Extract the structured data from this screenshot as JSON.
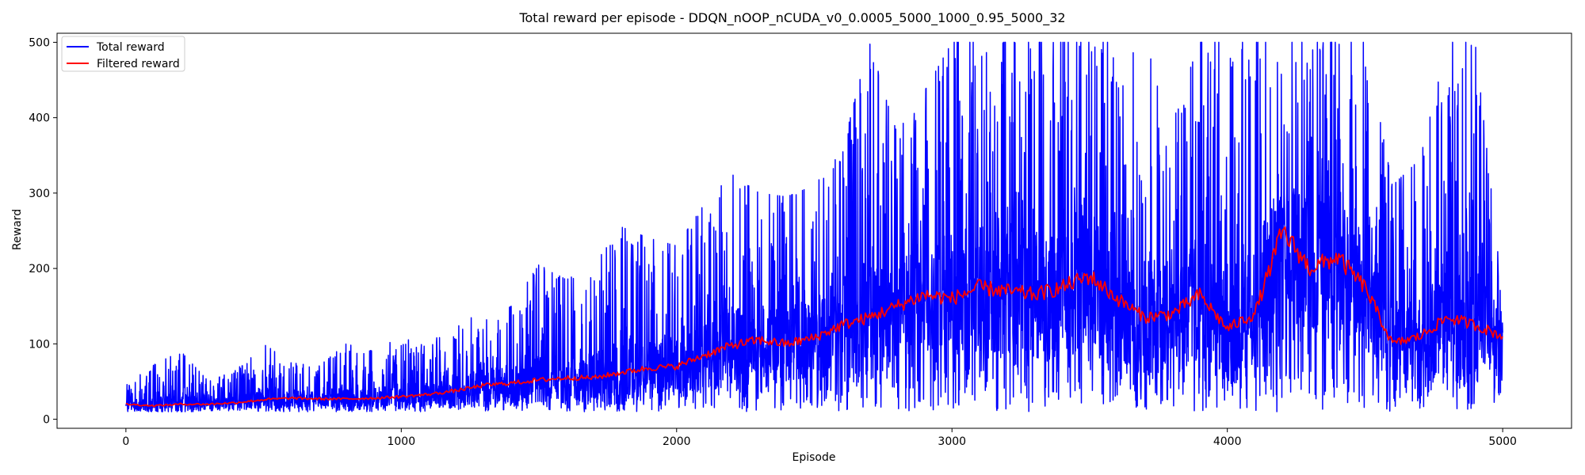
{
  "chart_data": {
    "type": "line",
    "title": "Total reward per episode - DDQN_nOOP_nCUDA_v0_0.0005_5000_1000_0.95_5000_32",
    "xlabel": "Episode",
    "ylabel": "Reward",
    "xlim": [
      -250,
      5250
    ],
    "ylim": [
      -12,
      512
    ],
    "xticks": [
      0,
      1000,
      2000,
      3000,
      4000,
      5000
    ],
    "yticks": [
      0,
      100,
      200,
      300,
      400,
      500
    ],
    "grid": false,
    "legend_position": "top-left",
    "series": [
      {
        "name": "Total reward",
        "color": "#0000ff",
        "x": [
          0,
          100,
          200,
          300,
          400,
          500,
          600,
          700,
          800,
          900,
          1000,
          1100,
          1200,
          1300,
          1400,
          1500,
          1600,
          1700,
          1800,
          1900,
          2000,
          2100,
          2200,
          2300,
          2400,
          2500,
          2600,
          2700,
          2800,
          2900,
          3000,
          3100,
          3200,
          3300,
          3400,
          3500,
          3600,
          3700,
          3800,
          3900,
          4000,
          4100,
          4200,
          4300,
          4400,
          4500,
          4600,
          4700,
          4800,
          4900,
          5000
        ],
        "min": [
          10,
          10,
          10,
          10,
          10,
          10,
          10,
          10,
          10,
          10,
          10,
          10,
          10,
          10,
          10,
          10,
          10,
          10,
          10,
          10,
          10,
          10,
          10,
          10,
          10,
          10,
          10,
          10,
          10,
          10,
          10,
          10,
          10,
          10,
          10,
          10,
          10,
          10,
          10,
          10,
          10,
          10,
          10,
          10,
          10,
          10,
          10,
          10,
          10,
          10,
          20
        ],
        "max": [
          45,
          72,
          90,
          50,
          65,
          100,
          75,
          70,
          100,
          90,
          110,
          95,
          140,
          130,
          150,
          205,
          185,
          205,
          255,
          240,
          230,
          285,
          325,
          300,
          295,
          310,
          355,
          500,
          380,
          435,
          500,
          500,
          500,
          500,
          500,
          500,
          500,
          500,
          400,
          500,
          500,
          500,
          500,
          500,
          500,
          500,
          310,
          345,
          500,
          500,
          165
        ]
      },
      {
        "name": "Filtered reward",
        "color": "#ff0000",
        "x": [
          0,
          100,
          200,
          300,
          400,
          500,
          600,
          700,
          800,
          900,
          1000,
          1100,
          1200,
          1300,
          1400,
          1500,
          1600,
          1700,
          1800,
          1900,
          2000,
          2100,
          2200,
          2300,
          2400,
          2500,
          2600,
          2700,
          2800,
          2900,
          3000,
          3100,
          3200,
          3300,
          3400,
          3500,
          3600,
          3700,
          3800,
          3900,
          4000,
          4100,
          4200,
          4300,
          4400,
          4500,
          4600,
          4700,
          4800,
          4900,
          5000
        ],
        "values": [
          20,
          18,
          20,
          20,
          22,
          26,
          28,
          27,
          27,
          28,
          30,
          33,
          38,
          45,
          48,
          52,
          55,
          55,
          62,
          68,
          70,
          85,
          98,
          105,
          100,
          108,
          125,
          135,
          150,
          165,
          160,
          175,
          170,
          165,
          175,
          190,
          160,
          135,
          140,
          165,
          120,
          140,
          250,
          200,
          215,
          175,
          100,
          110,
          135,
          125,
          110
        ]
      }
    ]
  }
}
